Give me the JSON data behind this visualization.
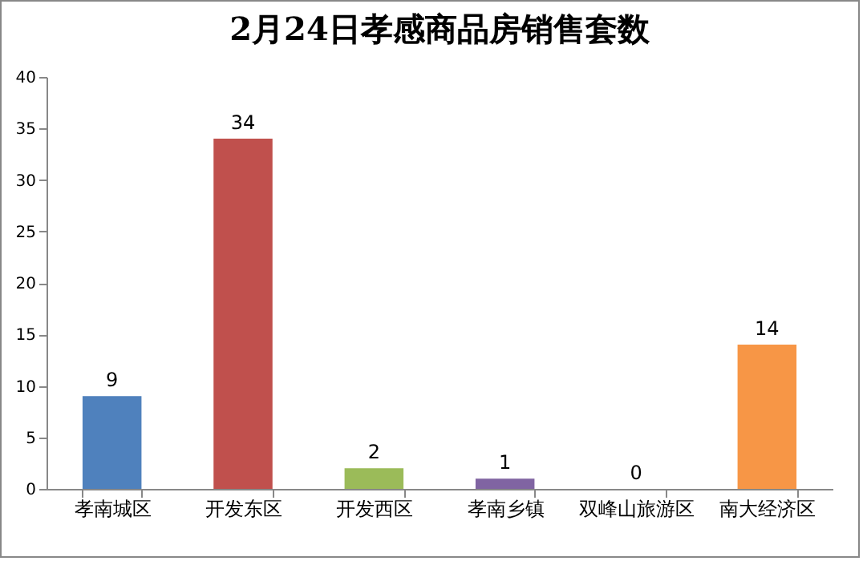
{
  "chart_data": {
    "type": "bar",
    "title": "2月24日孝感商品房销售套数",
    "categories": [
      "孝南城区",
      "开发东区",
      "开发西区",
      "孝南乡镇",
      "双峰山旅游区",
      "南大经济区"
    ],
    "values": [
      9,
      34,
      2,
      1,
      0,
      14
    ],
    "colors": [
      "#4f81bd",
      "#c0504d",
      "#9bbb59",
      "#8064a2",
      "#4bacc6",
      "#f79646"
    ],
    "ylim": [
      0,
      40
    ],
    "yticks": [
      0,
      5,
      10,
      15,
      20,
      25,
      30,
      35,
      40
    ],
    "data_labels": true
  }
}
